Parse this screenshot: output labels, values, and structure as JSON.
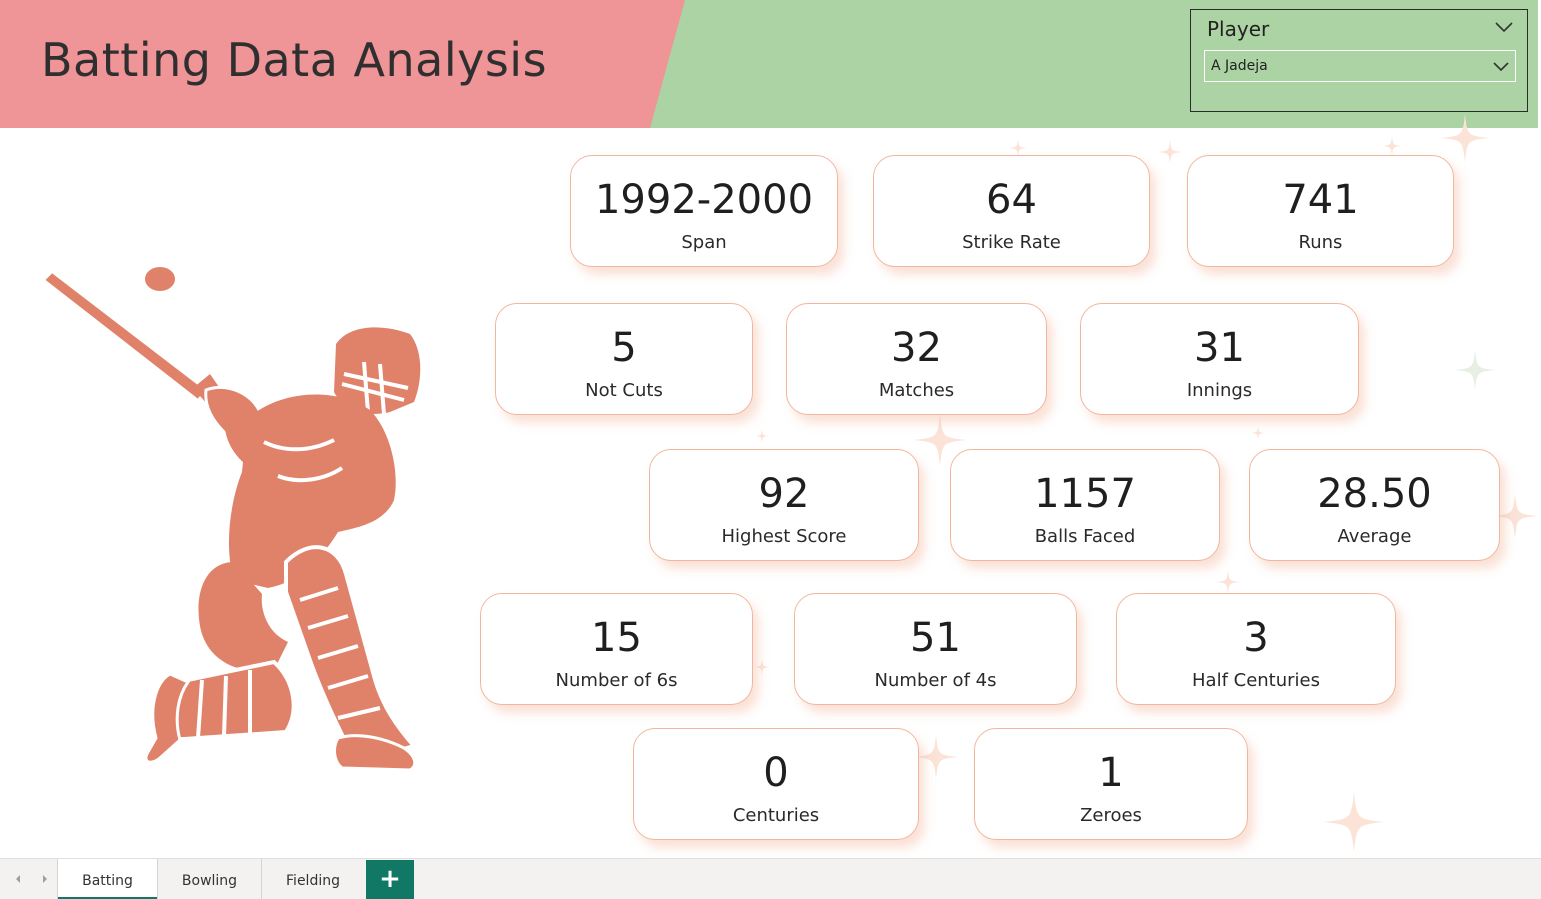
{
  "header": {
    "title": "Batting Data Analysis"
  },
  "slicer": {
    "title": "Player",
    "selected": "A Jadeja"
  },
  "stats": {
    "span": {
      "value": "1992-2000",
      "label": "Span"
    },
    "strike_rate": {
      "value": "64",
      "label": "Strike Rate"
    },
    "runs": {
      "value": "741",
      "label": "Runs"
    },
    "not_outs": {
      "value": "5",
      "label": "Not Cuts"
    },
    "matches": {
      "value": "32",
      "label": "Matches"
    },
    "innings": {
      "value": "31",
      "label": "Innings"
    },
    "highest_score": {
      "value": "92",
      "label": "Highest Score"
    },
    "balls_faced": {
      "value": "1157",
      "label": "Balls Faced"
    },
    "average": {
      "value": "28.50",
      "label": "Average"
    },
    "sixes": {
      "value": "15",
      "label": "Number of 6s"
    },
    "fours": {
      "value": "51",
      "label": "Number of 4s"
    },
    "half_centuries": {
      "value": "3",
      "label": "Half Centuries"
    },
    "centuries": {
      "value": "0",
      "label": "Centuries"
    },
    "zeroes": {
      "value": "1",
      "label": "Zeroes"
    }
  },
  "tabs": {
    "batting": "Batting",
    "bowling": "Bowling",
    "fielding": "Fielding",
    "add": "+"
  },
  "colors": {
    "banner_pink": "#ef9497",
    "banner_green": "#acd3a3",
    "figure": "#e0826a",
    "card_border": "#f1b79e",
    "tab_accent": "#117865"
  },
  "icons": {
    "nav_prev": "chevron-left-icon",
    "nav_next": "chevron-right-icon",
    "slicer_expand": "chevron-down-icon",
    "dropdown": "chevron-down-icon",
    "figure": "cricket-batsman-icon"
  }
}
